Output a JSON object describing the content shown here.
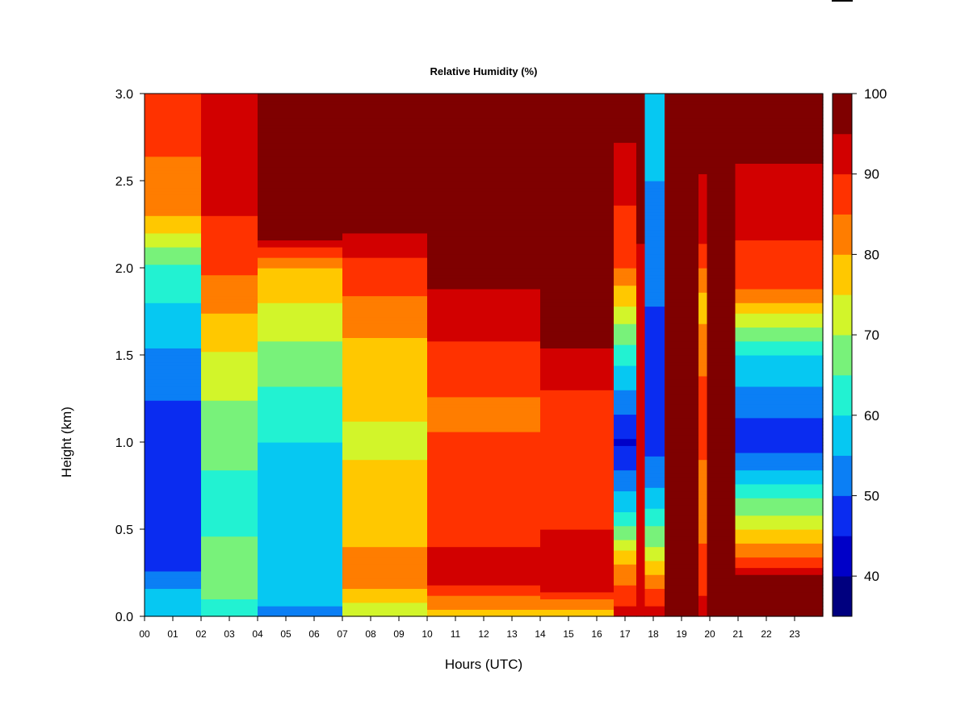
{
  "chart_data": {
    "type": "heatmap",
    "title": "Relative Humidity (%)",
    "xlabel": "Hours (UTC)",
    "ylabel": "Height (km)",
    "x_ticks": [
      "00",
      "01",
      "02",
      "03",
      "04",
      "05",
      "06",
      "07",
      "08",
      "09",
      "10",
      "11",
      "12",
      "13",
      "14",
      "15",
      "16",
      "17",
      "18",
      "19",
      "20",
      "21",
      "22",
      "23"
    ],
    "y_ticks": [
      "0.0",
      "0.5",
      "1.0",
      "1.5",
      "2.0",
      "2.5",
      "3.0"
    ],
    "xlim": [
      0,
      24
    ],
    "ylim": [
      0,
      3.0
    ],
    "colorbar": {
      "range": [
        35,
        100
      ],
      "tick_labels": [
        "40",
        "50",
        "60",
        "70",
        "80",
        "90",
        "100"
      ],
      "levels": [
        {
          "min": 35,
          "max": 40,
          "color": "#00007f"
        },
        {
          "min": 40,
          "max": 45,
          "color": "#0000c8"
        },
        {
          "min": 45,
          "max": 50,
          "color": "#0a2cf0"
        },
        {
          "min": 50,
          "max": 55,
          "color": "#0b7ff5"
        },
        {
          "min": 55,
          "max": 60,
          "color": "#06c8f2"
        },
        {
          "min": 60,
          "max": 65,
          "color": "#22f2d2"
        },
        {
          "min": 65,
          "max": 70,
          "color": "#78f27a"
        },
        {
          "min": 70,
          "max": 75,
          "color": "#d2f52a"
        },
        {
          "min": 75,
          "max": 80,
          "color": "#ffc800"
        },
        {
          "min": 80,
          "max": 85,
          "color": "#ff7d00"
        },
        {
          "min": 85,
          "max": 90,
          "color": "#ff3200"
        },
        {
          "min": 90,
          "max": 95,
          "color": "#d20000"
        },
        {
          "min": 95,
          "max": 100,
          "color": "#7f0000"
        }
      ]
    },
    "time_segments": [
      {
        "t": [
          0.0,
          2.0
        ],
        "profile": [
          [
            0,
            58
          ],
          [
            0.1,
            58
          ],
          [
            0.3,
            48
          ],
          [
            1.0,
            46
          ],
          [
            1.5,
            54
          ],
          [
            2.0,
            64
          ],
          [
            2.3,
            80
          ],
          [
            3.0,
            90
          ]
        ]
      },
      {
        "t": [
          2.0,
          4.0
        ],
        "profile": [
          [
            0,
            60
          ],
          [
            0.2,
            70
          ],
          [
            0.6,
            62
          ],
          [
            1.4,
            72
          ],
          [
            1.9,
            84
          ],
          [
            2.3,
            90
          ],
          [
            3.0,
            93
          ]
        ]
      },
      {
        "t": [
          4.0,
          7.0
        ],
        "profile": [
          [
            0,
            50
          ],
          [
            0.1,
            58
          ],
          [
            0.5,
            58
          ],
          [
            1.0,
            60
          ],
          [
            1.5,
            68
          ],
          [
            2.0,
            80
          ],
          [
            2.2,
            98
          ],
          [
            3.0,
            99
          ]
        ]
      },
      {
        "t": [
          7.0,
          10.0
        ],
        "profile": [
          [
            0,
            70
          ],
          [
            0.2,
            82
          ],
          [
            0.6,
            78
          ],
          [
            1.0,
            74
          ],
          [
            1.5,
            78
          ],
          [
            2.0,
            88
          ],
          [
            2.3,
            98
          ],
          [
            3.0,
            99
          ]
        ]
      },
      {
        "t": [
          10.0,
          14.0
        ],
        "profile": [
          [
            0,
            76
          ],
          [
            0.2,
            92
          ],
          [
            0.6,
            88
          ],
          [
            1.2,
            84
          ],
          [
            1.7,
            92
          ],
          [
            2.0,
            97
          ],
          [
            3.0,
            99
          ]
        ]
      },
      {
        "t": [
          14.0,
          16.6
        ],
        "profile": [
          [
            0,
            74
          ],
          [
            0.15,
            92
          ],
          [
            0.5,
            90
          ],
          [
            1.2,
            88
          ],
          [
            1.6,
            96
          ],
          [
            2.0,
            99
          ],
          [
            3.0,
            99
          ]
        ]
      },
      {
        "t": [
          16.6,
          17.4
        ],
        "profile": [
          [
            0,
            92
          ],
          [
            0.3,
            80
          ],
          [
            0.6,
            60
          ],
          [
            1.0,
            44
          ],
          [
            1.5,
            62
          ],
          [
            2.0,
            85
          ],
          [
            2.5,
            92
          ],
          [
            3.0,
            99
          ]
        ]
      },
      {
        "t": [
          17.4,
          17.7
        ],
        "profile": [
          [
            0,
            95
          ],
          [
            0.5,
            90
          ],
          [
            1.5,
            92
          ],
          [
            3.0,
            99
          ]
        ]
      },
      {
        "t": [
          17.7,
          18.4
        ],
        "profile": [
          [
            0,
            94
          ],
          [
            0.4,
            70
          ],
          [
            0.8,
            52
          ],
          [
            1.2,
            45
          ],
          [
            2.0,
            52
          ],
          [
            3.0,
            58
          ]
        ]
      },
      {
        "t": [
          18.4,
          19.6
        ],
        "profile": [
          [
            0,
            99
          ],
          [
            3.0,
            99
          ]
        ]
      },
      {
        "t": [
          19.6,
          19.9
        ],
        "profile": [
          [
            0,
            92
          ],
          [
            0.6,
            82
          ],
          [
            1.2,
            88
          ],
          [
            1.8,
            78
          ],
          [
            2.2,
            92
          ],
          [
            3.0,
            99
          ]
        ]
      },
      {
        "t": [
          19.9,
          20.9
        ],
        "profile": [
          [
            0,
            99
          ],
          [
            3.0,
            99
          ]
        ]
      },
      {
        "t": [
          20.9,
          24.0
        ],
        "profile": [
          [
            0,
            98
          ],
          [
            0.2,
            98
          ],
          [
            0.3,
            88
          ],
          [
            0.5,
            75
          ],
          [
            1.0,
            46
          ],
          [
            1.5,
            60
          ],
          [
            1.9,
            86
          ],
          [
            2.3,
            92
          ],
          [
            3.0,
            99
          ]
        ]
      }
    ]
  }
}
